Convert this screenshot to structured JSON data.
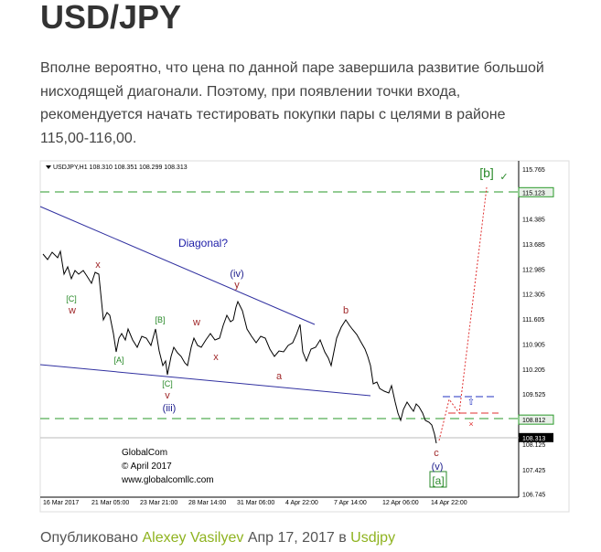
{
  "title": "USD/JPY",
  "paragraph": [
    "Вполне вероятно, что цена по данной паре завершила развитие большой",
    "нисходящей диагонали.  Поэтому, при появлении точки входа,",
    "рекомендуется начать тестировать покупки пары с целями в районе",
    "115,00-116,00."
  ],
  "chart": {
    "header": "USDJPY,H1  108.310 108.351 108.299 108.313",
    "price_labels": [
      "115.765",
      "114.385",
      "113.685",
      "112.985",
      "112.305",
      "111.605",
      "110.905",
      "110.205",
      "109.525",
      "108.125",
      "107.425",
      "106.745"
    ],
    "level_labels": [
      "115.123",
      "108.812"
    ],
    "current_price": "108.313",
    "dates": [
      "16 Mar 2017",
      "21 Mar 05:00",
      "23 Mar 21:00",
      "28 Mar 14:00",
      "31 Mar 06:00",
      "4 Apr 22:00",
      "7 Apr 14:00",
      "12 Apr 06:00",
      "14 Apr 22:00"
    ],
    "annotations": [
      {
        "text": "Diagonal?",
        "color": "#1c1ca8"
      },
      {
        "text": "(iv)",
        "color": "#1c1c8c"
      },
      {
        "text": "y",
        "color": "#a0282a"
      },
      {
        "text": "x",
        "color": "#a0282a"
      },
      {
        "text": "[C]",
        "color": "#2a8a2a"
      },
      {
        "text": "w",
        "color": "#a0282a"
      },
      {
        "text": "[B]",
        "color": "#2a8a2a"
      },
      {
        "text": "w",
        "color": "#a0282a"
      },
      {
        "text": "[A]",
        "color": "#2a8a2a"
      },
      {
        "text": "x",
        "color": "#a0282a"
      },
      {
        "text": "[C]",
        "color": "#2a8a2a"
      },
      {
        "text": "v",
        "color": "#a0282a"
      },
      {
        "text": "(iii)",
        "color": "#1c1c8c"
      },
      {
        "text": "a",
        "color": "#a0282a"
      },
      {
        "text": "b",
        "color": "#a0282a"
      },
      {
        "text": "c",
        "color": "#a0282a"
      },
      {
        "text": "(v)",
        "color": "#1c1c8c"
      },
      {
        "text": "[a]",
        "color": "#2a8a2a"
      },
      {
        "text": "[b]",
        "color": "#2a8a2a"
      },
      {
        "text": "✓",
        "color": "#2a8a2a"
      }
    ],
    "watermark": [
      "GlobalCom",
      "© April 2017",
      "www.globalcomllc.com"
    ]
  },
  "footer": {
    "published": "Опубликовано",
    "author": "Alexey Vasilyev",
    "date": "Апр 17, 2017 в",
    "category": "Usdjpy"
  }
}
